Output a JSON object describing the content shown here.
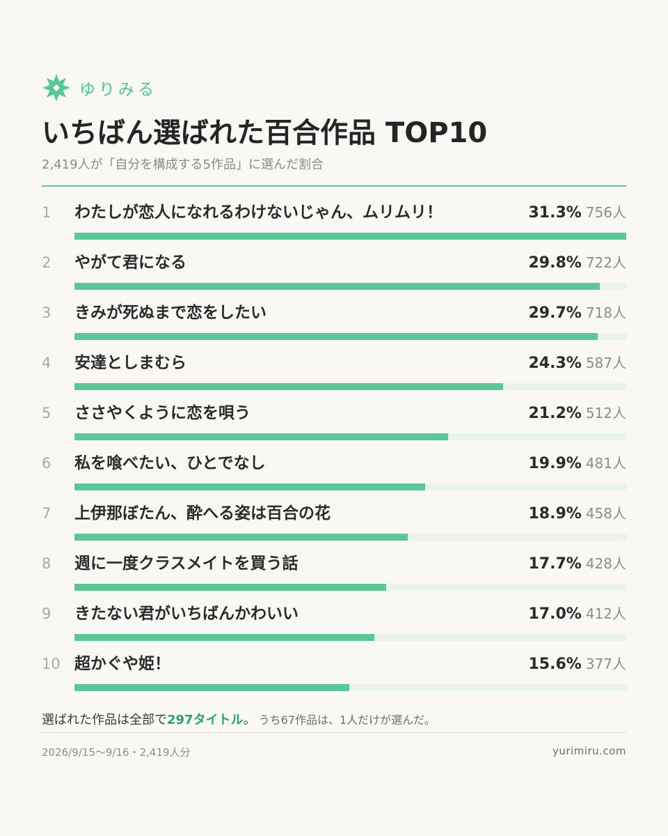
{
  "brand": {
    "name": "ゆりみる",
    "icon": "lily-flower-icon",
    "color": "#52c291"
  },
  "title": "いちばん選ばれた百合作品 TOP10",
  "subtitle": "2,419人が「自分を構成する5作品」に選んだ割合",
  "colors": {
    "bar": "#5cc796",
    "track": "#e7f3ec",
    "accent": "#2f9e6e"
  },
  "chart_data": {
    "type": "bar",
    "orientation": "horizontal",
    "xlim": [
      0,
      31.3
    ],
    "rows": [
      {
        "rank": "1",
        "title": "わたしが恋人になれるわけないじゃん、ムリムリ！",
        "percent": 31.3,
        "percent_label": "31.3%",
        "count_label": "756人"
      },
      {
        "rank": "2",
        "title": "やがて君になる",
        "percent": 29.8,
        "percent_label": "29.8%",
        "count_label": "722人"
      },
      {
        "rank": "3",
        "title": "きみが死ぬまで恋をしたい",
        "percent": 29.7,
        "percent_label": "29.7%",
        "count_label": "718人"
      },
      {
        "rank": "4",
        "title": "安達としまむら",
        "percent": 24.3,
        "percent_label": "24.3%",
        "count_label": "587人"
      },
      {
        "rank": "5",
        "title": "ささやくように恋を唄う",
        "percent": 21.2,
        "percent_label": "21.2%",
        "count_label": "512人"
      },
      {
        "rank": "6",
        "title": "私を喰べたい、ひとでなし",
        "percent": 19.9,
        "percent_label": "19.9%",
        "count_label": "481人"
      },
      {
        "rank": "7",
        "title": "上伊那ぼたん、酔へる姿は百合の花",
        "percent": 18.9,
        "percent_label": "18.9%",
        "count_label": "458人"
      },
      {
        "rank": "8",
        "title": "週に一度クラスメイトを買う話",
        "percent": 17.7,
        "percent_label": "17.7%",
        "count_label": "428人"
      },
      {
        "rank": "9",
        "title": "きたない君がいちばんかわいい",
        "percent": 17.0,
        "percent_label": "17.0%",
        "count_label": "412人"
      },
      {
        "rank": "10",
        "title": "超かぐや姫！",
        "percent": 15.6,
        "percent_label": "15.6%",
        "count_label": "377人"
      }
    ]
  },
  "footer": {
    "note_prefix": "選ばれた作品は全部で",
    "note_highlight": "297タイトル",
    "note_suffix": "。",
    "note_small": "うち67作品は、1人だけが選んだ。",
    "period": "2026/9/15〜9/16・2,419人分",
    "url": "yurimiru.com"
  }
}
